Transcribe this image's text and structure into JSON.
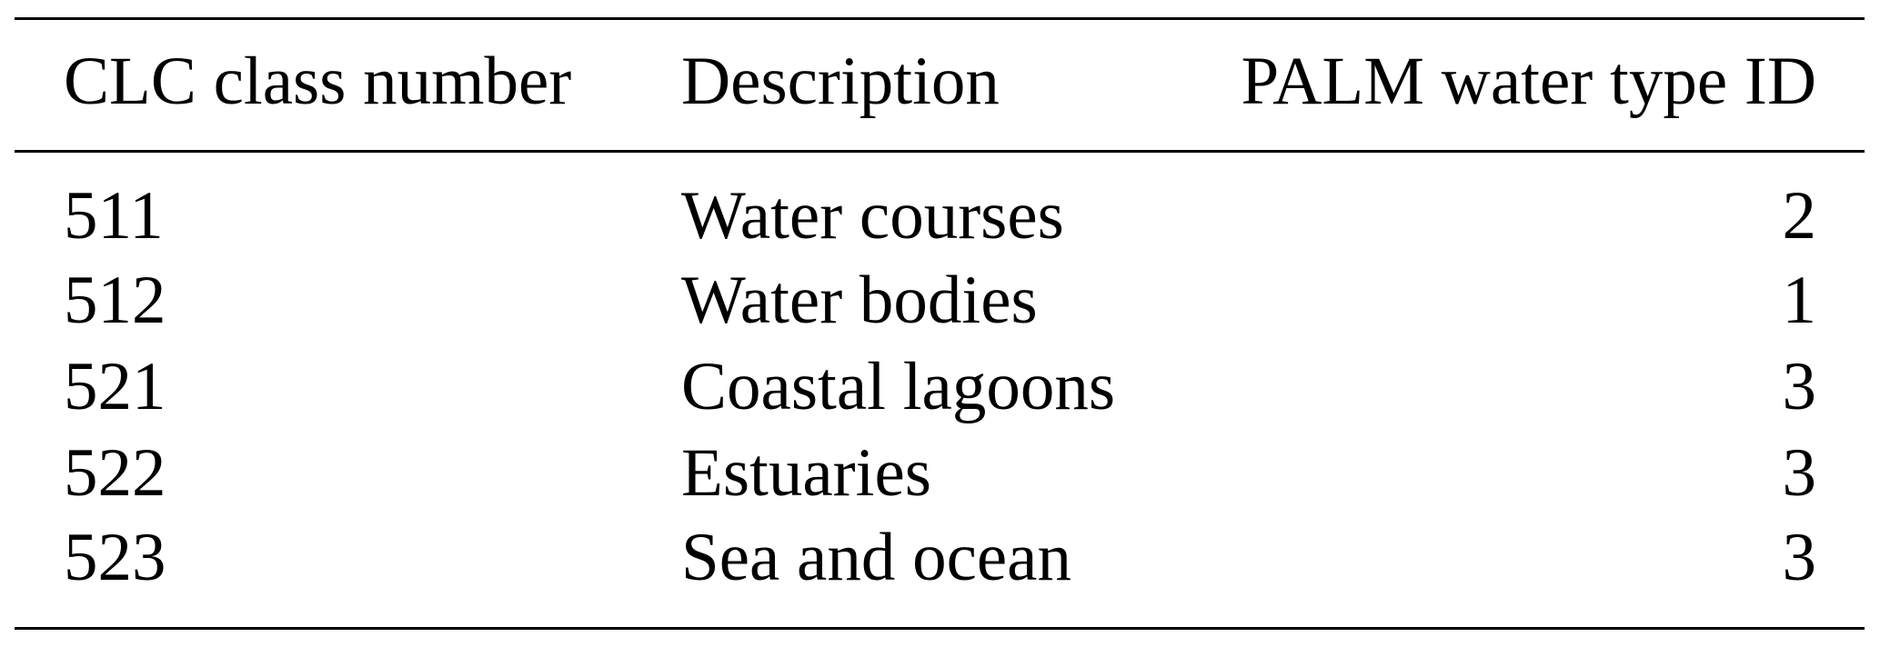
{
  "table": {
    "headers": [
      "CLC class number",
      "Description",
      "PALM water type ID"
    ],
    "rows": [
      [
        "511",
        "Water courses",
        "2"
      ],
      [
        "512",
        "Water bodies",
        "1"
      ],
      [
        "521",
        "Coastal lagoons",
        "3"
      ],
      [
        "522",
        "Estuaries",
        "3"
      ],
      [
        "523",
        "Sea and ocean",
        "3"
      ]
    ]
  }
}
